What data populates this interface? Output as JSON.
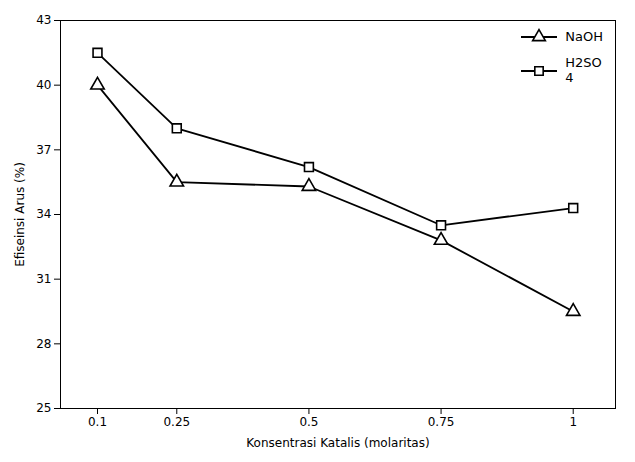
{
  "chart_data": {
    "type": "line",
    "x": [
      0.1,
      0.25,
      0.5,
      0.75,
      1.0
    ],
    "series": [
      {
        "name": "NaOH",
        "color": "#000000",
        "marker": "triangle",
        "values": [
          40.0,
          35.5,
          35.3,
          32.8,
          29.5
        ]
      },
      {
        "name": "H2SO\n4",
        "color": "#000000",
        "marker": "square",
        "values": [
          41.5,
          38.0,
          36.2,
          33.5,
          34.3
        ]
      }
    ],
    "xlabel": "Konsentrasi Katalis (molaritas)",
    "ylabel": "Efiseinsi Arus (%)",
    "xlim": [
      0.03,
      1.08
    ],
    "ylim": [
      25,
      43
    ],
    "xticks": [
      0.1,
      0.25,
      0.5,
      0.75,
      1
    ],
    "yticks": [
      25,
      28,
      31,
      34,
      37,
      40,
      43
    ],
    "grid": false,
    "legend": "upper right"
  }
}
